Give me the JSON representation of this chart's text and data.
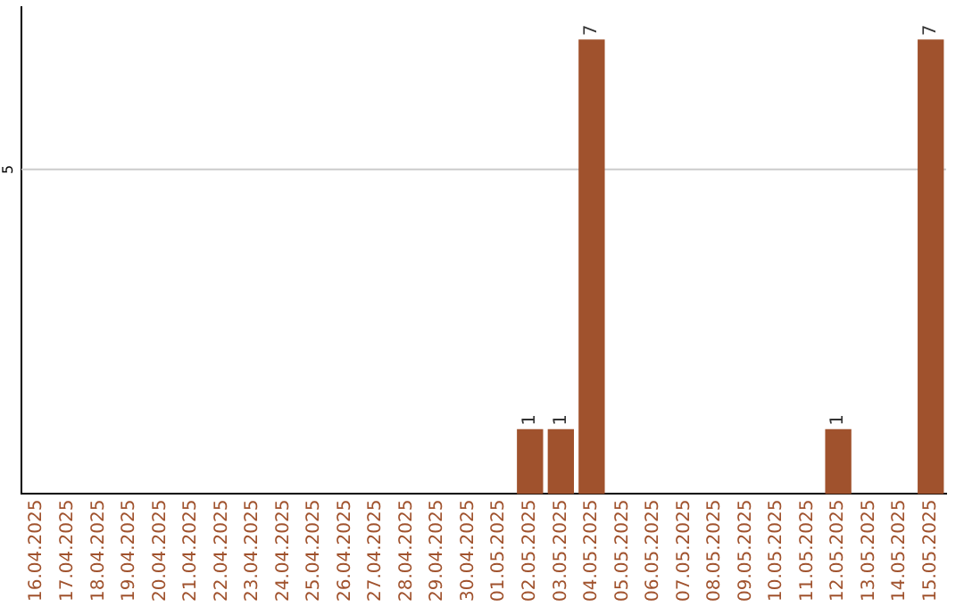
{
  "chart_data": {
    "type": "bar",
    "categories": [
      "16.04.2025",
      "17.04.2025",
      "18.04.2025",
      "19.04.2025",
      "20.04.2025",
      "21.04.2025",
      "22.04.2025",
      "23.04.2025",
      "24.04.2025",
      "25.04.2025",
      "26.04.2025",
      "27.04.2025",
      "28.04.2025",
      "29.04.2025",
      "30.04.2025",
      "01.05.2025",
      "02.05.2025",
      "03.05.2025",
      "04.05.2025",
      "05.05.2025",
      "06.05.2025",
      "07.05.2025",
      "08.05.2025",
      "09.05.2025",
      "10.05.2025",
      "11.05.2025",
      "12.05.2025",
      "13.05.2025",
      "14.05.2025",
      "15.05.2025"
    ],
    "values": [
      null,
      null,
      null,
      null,
      null,
      null,
      null,
      null,
      null,
      null,
      null,
      null,
      null,
      null,
      null,
      null,
      1,
      1,
      7,
      null,
      null,
      null,
      null,
      null,
      null,
      null,
      1,
      null,
      null,
      7
    ],
    "ylim": [
      0,
      7.5
    ],
    "ref_lines": [
      {
        "axis": "y",
        "value": 5,
        "label": "5",
        "color": "#cccccc"
      }
    ],
    "value_labels": [
      null,
      null,
      null,
      null,
      null,
      null,
      null,
      null,
      null,
      null,
      null,
      null,
      null,
      null,
      null,
      null,
      "1",
      "1",
      "7",
      null,
      null,
      null,
      null,
      null,
      null,
      null,
      "1",
      null,
      null,
      "7"
    ],
    "color": "#a0522d",
    "grid": false,
    "legend": false
  }
}
